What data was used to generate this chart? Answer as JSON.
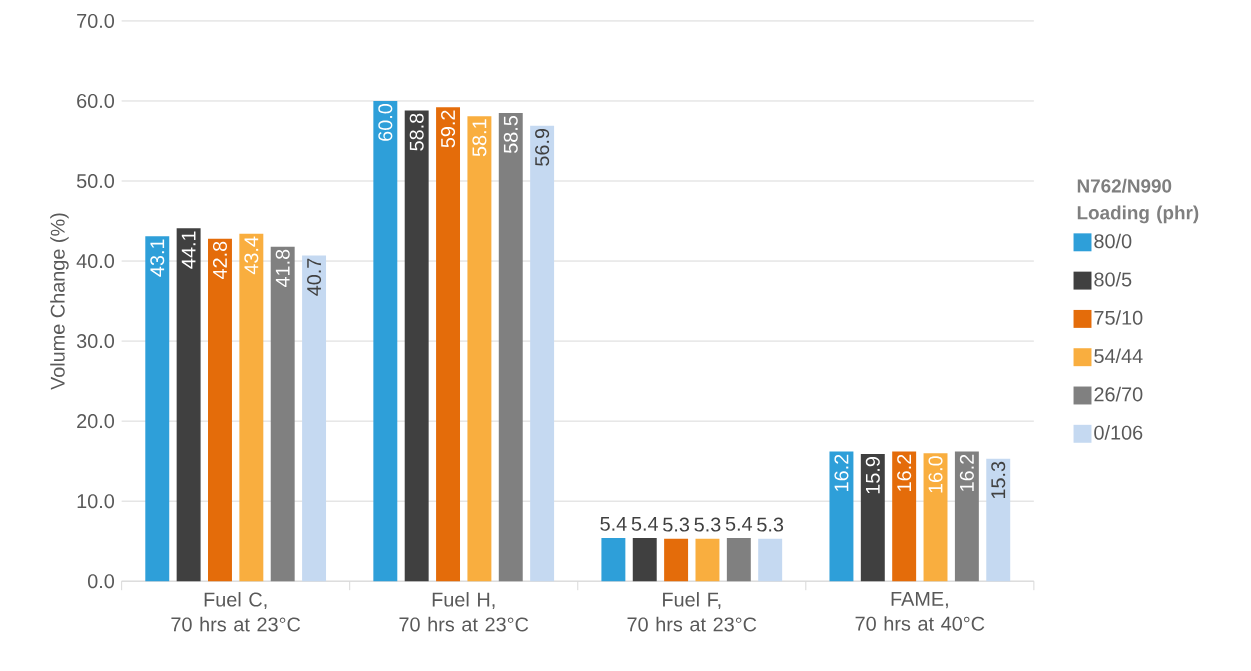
{
  "chart_data": {
    "type": "bar",
    "ylabel": "Volume Change (%)",
    "legend_title": "N762/N990 Loading (phr)",
    "categories": [
      "Fuel C,\n70 hrs at 23°C",
      "Fuel H,\n70 hrs at 23°C",
      "Fuel F,\n70 hrs at 23°C",
      "FAME,\n70 hrs at 40°C"
    ],
    "series": [
      {
        "name": "80/0",
        "color": "#2e9fd9",
        "values": [
          43.1,
          60.0,
          5.4,
          16.2
        ],
        "value_labels": [
          "43.1",
          "60.0",
          "5.4",
          "16.2"
        ]
      },
      {
        "name": "80/5",
        "color": "#404040",
        "values": [
          44.1,
          58.8,
          5.4,
          15.9
        ],
        "value_labels": [
          "44.1",
          "58.8",
          "5.4",
          "15.9"
        ]
      },
      {
        "name": "75/10",
        "color": "#e46c0a",
        "values": [
          42.8,
          59.2,
          5.3,
          16.2
        ],
        "value_labels": [
          "42.8",
          "59.2",
          "5.3",
          "16.2"
        ]
      },
      {
        "name": "54/44",
        "color": "#f9ae3f",
        "values": [
          43.4,
          58.1,
          5.3,
          16.0
        ],
        "value_labels": [
          "43.4",
          "58.1",
          "5.3",
          "16.0"
        ]
      },
      {
        "name": "26/70",
        "color": "#808080",
        "values": [
          41.8,
          58.5,
          5.4,
          16.2
        ],
        "value_labels": [
          "41.8",
          "58.5",
          "5.4",
          "16.2"
        ]
      },
      {
        "name": "0/106",
        "color": "#c5d9f1",
        "values": [
          40.7,
          56.9,
          5.3,
          15.3
        ],
        "value_labels": [
          "40.7",
          "56.9",
          "5.3",
          "15.3"
        ]
      }
    ],
    "ylim": [
      0,
      70
    ],
    "yticks": [
      {
        "value": 0,
        "label": "0.0"
      },
      {
        "value": 10,
        "label": "10.0"
      },
      {
        "value": 20,
        "label": "20.0"
      },
      {
        "value": 30,
        "label": "30.0"
      },
      {
        "value": 40,
        "label": "40.0"
      },
      {
        "value": 50,
        "label": "50.0"
      },
      {
        "value": 60,
        "label": "60.0"
      },
      {
        "value": 70,
        "label": "70.0"
      }
    ],
    "grid": "y",
    "legend": "right"
  }
}
